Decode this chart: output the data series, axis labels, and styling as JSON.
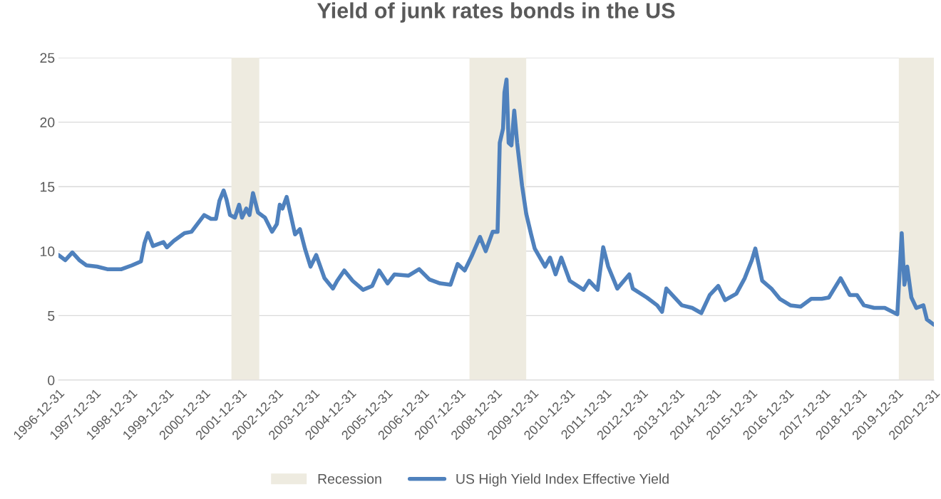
{
  "chart_data": {
    "type": "line",
    "title": "Yield of junk rates bonds in the US",
    "x": [
      "1996-12-31",
      "1997-03-10",
      "1997-05-19",
      "1997-07-28",
      "1997-10-07",
      "1998-01-21",
      "1998-05-04",
      "1998-09-23",
      "1999-01-06",
      "1999-04-06",
      "1999-05-11",
      "1999-06-15",
      "1999-08-04",
      "1999-11-17",
      "1999-12-22",
      "2000-03-01",
      "2000-06-15",
      "2000-08-24",
      "2000-12-29",
      "2001-03-08",
      "2001-04-26",
      "2001-05-31",
      "2001-07-12",
      "2001-08-10",
      "2001-09-14",
      "2001-11-02",
      "2001-12-14",
      "2002-01-12",
      "2002-02-24",
      "2002-03-28",
      "2002-05-02",
      "2002-06-21",
      "2002-08-30",
      "2002-11-09",
      "2002-12-27",
      "2003-01-25",
      "2003-02-21",
      "2003-04-04",
      "2003-05-15",
      "2003-06-27",
      "2003-08-15",
      "2003-10-04",
      "2003-11-29",
      "2004-01-25",
      "2004-04-17",
      "2004-07-10",
      "2004-08-22",
      "2004-11-01",
      "2005-01-24",
      "2005-05-08",
      "2005-08-08",
      "2005-10-16",
      "2006-01-09",
      "2006-03-19",
      "2006-08-07",
      "2006-11-21",
      "2007-03-04",
      "2007-06-18",
      "2007-10-01",
      "2007-12-11",
      "2008-02-20",
      "2008-04-29",
      "2008-07-22",
      "2008-09-17",
      "2008-11-26",
      "2009-01-14",
      "2009-02-05",
      "2009-03-10",
      "2009-03-24",
      "2009-04-14",
      "2009-05-05",
      "2009-06-02",
      "2009-06-30",
      "2009-07-29",
      "2009-09-16",
      "2009-10-28",
      "2009-12-16",
      "2010-01-21",
      "2010-05-05",
      "2010-06-23",
      "2010-08-18",
      "2010-10-14",
      "2011-01-07",
      "2011-05-25",
      "2011-07-20",
      "2011-10-13",
      "2011-12-08",
      "2012-01-27",
      "2012-04-27",
      "2012-08-25",
      "2012-09-29",
      "2013-02-17",
      "2013-05-31",
      "2013-07-19",
      "2013-08-31",
      "2013-11-23",
      "2014-02-02",
      "2014-05-16",
      "2014-08-16",
      "2014-11-09",
      "2015-02-02",
      "2015-04-11",
      "2015-08-02",
      "2015-10-25",
      "2016-01-04",
      "2016-02-08",
      "2016-04-17",
      "2016-07-17",
      "2016-10-10",
      "2017-01-24",
      "2017-05-07",
      "2017-08-21",
      "2017-12-05",
      "2018-02-13",
      "2018-06-11",
      "2018-09-11",
      "2018-11-21",
      "2019-01-30",
      "2019-05-13",
      "2019-08-27",
      "2019-12-31",
      "2020-02-13",
      "2020-03-11",
      "2020-04-08",
      "2020-05-20",
      "2020-07-08",
      "2020-09-17",
      "2020-10-22",
      "2020-12-31"
    ],
    "series": [
      {
        "name": "US High Yield Index Effective Yield",
        "color": "#4f81bd",
        "values": [
          9.7,
          9.3,
          9.9,
          9.3,
          8.9,
          8.8,
          8.6,
          8.6,
          8.9,
          9.2,
          10.6,
          11.4,
          10.4,
          10.7,
          10.3,
          10.8,
          11.4,
          11.5,
          12.8,
          12.5,
          12.5,
          13.9,
          14.7,
          14.0,
          12.8,
          12.6,
          13.6,
          12.6,
          13.3,
          12.8,
          14.5,
          13.0,
          12.6,
          11.5,
          12.1,
          13.6,
          13.3,
          14.2,
          12.8,
          11.3,
          11.7,
          10.2,
          8.8,
          9.7,
          7.9,
          7.1,
          7.7,
          8.5,
          7.7,
          7.0,
          7.3,
          8.5,
          7.5,
          8.2,
          8.1,
          8.6,
          7.8,
          7.5,
          7.4,
          9.0,
          8.5,
          9.6,
          11.1,
          10.0,
          11.5,
          11.5,
          18.4,
          19.5,
          22.3,
          23.3,
          18.4,
          18.2,
          20.9,
          18.4,
          15.1,
          12.9,
          11.3,
          10.2,
          8.8,
          9.5,
          8.2,
          9.5,
          7.7,
          7.0,
          7.7,
          7.0,
          10.3,
          8.8,
          7.1,
          8.2,
          7.1,
          6.4,
          5.8,
          5.3,
          7.1,
          6.4,
          5.8,
          5.6,
          5.2,
          6.6,
          7.3,
          6.2,
          6.7,
          7.9,
          9.3,
          10.2,
          7.7,
          7.1,
          6.3,
          5.8,
          5.7,
          6.3,
          6.3,
          6.4,
          7.9,
          6.6,
          6.6,
          5.8,
          5.6,
          5.6,
          5.1,
          11.4,
          7.4,
          8.8,
          6.4,
          5.6,
          5.8,
          4.7,
          4.3
        ]
      }
    ],
    "bands": [
      {
        "axis": "x",
        "from": "2001-09-28",
        "to": "2002-07-04",
        "label": "Recession",
        "color": "#eeebe0"
      },
      {
        "axis": "x",
        "from": "2008-04-08",
        "to": "2009-10-28",
        "color": "#eeebe0"
      },
      {
        "axis": "x",
        "from": "2020-01-15",
        "to": "2020-12-31",
        "color": "#eeebe0"
      }
    ],
    "xlim": [
      "1996-12-31",
      "2020-12-31"
    ],
    "xticks": [
      "1996-12-31",
      "1997-12-31",
      "1998-12-31",
      "1999-12-31",
      "2000-12-31",
      "2001-12-31",
      "2002-12-31",
      "2003-12-31",
      "2004-12-31",
      "2005-12-31",
      "2006-12-31",
      "2007-12-31",
      "2008-12-31",
      "2009-12-31",
      "2010-12-31",
      "2011-12-31",
      "2012-12-31",
      "2013-12-31",
      "2014-12-31",
      "2015-12-31",
      "2016-12-31",
      "2017-12-31",
      "2018-12-31",
      "2019-12-31",
      "2020-12-31"
    ],
    "ylim": [
      0,
      25
    ],
    "yticks": [
      0,
      5,
      10,
      15,
      20,
      25
    ],
    "grid": "y",
    "legend": "bottom",
    "line_style": "solid",
    "marker": "none"
  }
}
